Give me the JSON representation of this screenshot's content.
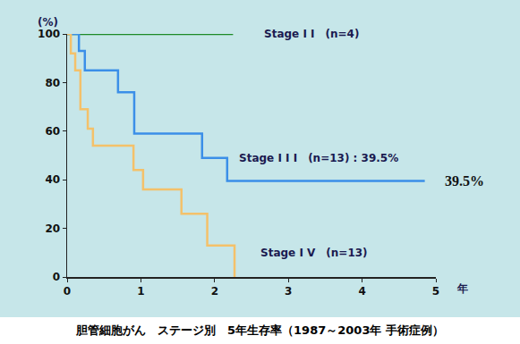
{
  "chart_data": {
    "type": "line",
    "line_style": "step",
    "title": "胆管細胞がん　ステージ別　5年生存率（1987～2003年 手術症例）",
    "x_label": "年",
    "y_label": "(%)",
    "xlim": [
      0,
      5
    ],
    "xticks": [
      0,
      1,
      2,
      3,
      4,
      5
    ],
    "ylim": [
      0,
      100
    ],
    "yticks": [
      0,
      20,
      40,
      60,
      80,
      100
    ],
    "grid": false,
    "series": [
      {
        "name": "Stage I I　(n=4)",
        "color": "#1e8a28",
        "x": [
          0,
          2.25
        ],
        "values": [
          100,
          100
        ]
      },
      {
        "name": "Stage I I I　(n=13) : 39.5%",
        "color": "#3b8fe8",
        "x": [
          0,
          0.16,
          0.24,
          0.69,
          0.91,
          1.83,
          2.17,
          4.85
        ],
        "values": [
          100,
          93,
          85,
          76,
          59,
          49,
          39.5,
          39.5
        ]
      },
      {
        "name": "Stage I V　(n=13)",
        "color": "#f4c16a",
        "x": [
          0,
          0.05,
          0.11,
          0.18,
          0.28,
          0.35,
          0.9,
          1.03,
          1.55,
          1.9,
          2.27
        ],
        "values": [
          100,
          92,
          85,
          69,
          61,
          54,
          44,
          36,
          26,
          13,
          0
        ]
      }
    ],
    "annotations": [
      {
        "text": "39.5%",
        "y": 39.5
      }
    ]
  }
}
